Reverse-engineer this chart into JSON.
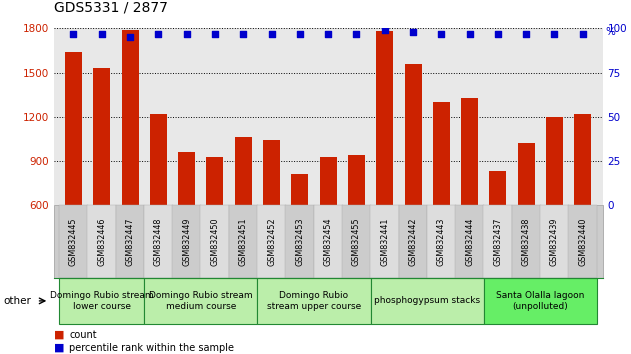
{
  "title": "GDS5331 / 2877",
  "samples": [
    "GSM832445",
    "GSM832446",
    "GSM832447",
    "GSM832448",
    "GSM832449",
    "GSM832450",
    "GSM832451",
    "GSM832452",
    "GSM832453",
    "GSM832454",
    "GSM832455",
    "GSM832441",
    "GSM832442",
    "GSM832443",
    "GSM832444",
    "GSM832437",
    "GSM832438",
    "GSM832439",
    "GSM832440"
  ],
  "counts": [
    1640,
    1530,
    1790,
    1220,
    960,
    930,
    1060,
    1040,
    810,
    930,
    940,
    1780,
    1560,
    1300,
    1330,
    830,
    1020,
    1200,
    1220
  ],
  "percentiles": [
    97,
    97,
    95,
    97,
    97,
    97,
    97,
    97,
    97,
    97,
    97,
    99,
    98,
    97,
    97,
    97,
    97,
    97,
    97
  ],
  "bar_color": "#cc2200",
  "dot_color": "#0000cc",
  "ylim_left": [
    600,
    1800
  ],
  "ylim_right": [
    0,
    100
  ],
  "yticks_left": [
    600,
    900,
    1200,
    1500,
    1800
  ],
  "yticks_right": [
    0,
    25,
    50,
    75,
    100
  ],
  "groups": [
    {
      "label": "Domingo Rubio stream\nlower course",
      "start": 0,
      "end": 3,
      "color": "#bbeeaa"
    },
    {
      "label": "Domingo Rubio stream\nmedium course",
      "start": 3,
      "end": 7,
      "color": "#bbeeaa"
    },
    {
      "label": "Domingo Rubio\nstream upper course",
      "start": 7,
      "end": 11,
      "color": "#bbeeaa"
    },
    {
      "label": "phosphogypsum stacks",
      "start": 11,
      "end": 15,
      "color": "#bbeeaa"
    },
    {
      "label": "Santa Olalla lagoon\n(unpolluted)",
      "start": 15,
      "end": 19,
      "color": "#66ee66"
    }
  ],
  "other_label": "other",
  "legend_count_label": "count",
  "legend_pct_label": "percentile rank within the sample",
  "background_color": "#ffffff",
  "plot_bg_color": "#e8e8e8",
  "tick_bg_color": "#cccccc",
  "title_fontsize": 10,
  "axis_label_color_left": "#cc2200",
  "axis_label_color_right": "#0000cc",
  "group_border_color": "#228833",
  "group_text_fontsize": 6.5
}
